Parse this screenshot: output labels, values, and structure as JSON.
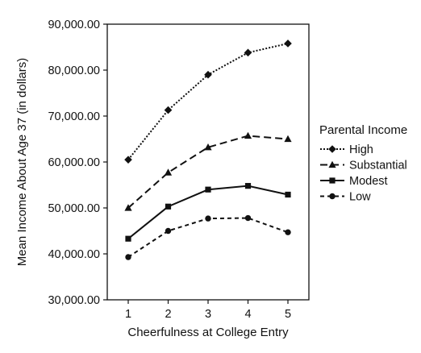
{
  "chart_data": {
    "type": "line",
    "title": "",
    "xlabel": "Cheerfulness at College Entry",
    "ylabel": "Mean Income About Age 37 (in dollars)",
    "x": [
      1,
      2,
      3,
      4,
      5
    ],
    "x_tick_labels": [
      "1",
      "2",
      "3",
      "4",
      "5"
    ],
    "y_tick_labels": [
      "30,000.00",
      "40,000.00",
      "50,000.00",
      "60,000.00",
      "70,000.00",
      "80,000.00",
      "90,000.00"
    ],
    "ylim": [
      30000,
      90000
    ],
    "grid": false,
    "legend": {
      "title": "Parental Income",
      "position": "right"
    },
    "series": [
      {
        "name": "High",
        "values": [
          60500,
          71300,
          79000,
          83800,
          85800
        ],
        "marker": "diamond",
        "dash": "2,2",
        "color": "#111111"
      },
      {
        "name": "Substantial",
        "values": [
          50000,
          57700,
          63200,
          65700,
          65000
        ],
        "marker": "triangle",
        "dash": "9,5",
        "color": "#111111"
      },
      {
        "name": "Modest",
        "values": [
          43300,
          50300,
          54000,
          54800,
          52900
        ],
        "marker": "square",
        "dash": "",
        "color": "#111111"
      },
      {
        "name": "Low",
        "values": [
          39300,
          45000,
          47700,
          47800,
          44700
        ],
        "marker": "circle",
        "dash": "5,4",
        "color": "#111111"
      }
    ]
  }
}
